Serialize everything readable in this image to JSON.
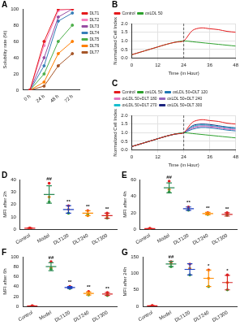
{
  "chart_data": [
    {
      "type": "line",
      "panel_label": "A",
      "y_label": "Solubility rate (%)",
      "categories": [
        "0 h",
        "24 h",
        "48 h",
        "72 h"
      ],
      "series": [
        {
          "name": "DLT1",
          "color": "#e41a1c",
          "values": [
            0,
            60,
            100,
            100
          ]
        },
        {
          "name": "DLT2",
          "color": "#f781bf",
          "values": [
            0,
            55,
            98,
            100
          ]
        },
        {
          "name": "DLT3",
          "color": "#984ea3",
          "values": [
            0,
            40,
            90,
            100
          ]
        },
        {
          "name": "DLT4",
          "color": "#377eb8",
          "values": [
            0,
            30,
            85,
            95
          ]
        },
        {
          "name": "DLT5",
          "color": "#4daf4a",
          "values": [
            0,
            20,
            60,
            80
          ]
        },
        {
          "name": "DLT6",
          "color": "#ff7f00",
          "values": [
            0,
            10,
            45,
            60
          ]
        },
        {
          "name": "DLT7",
          "color": "#a65628",
          "values": [
            0,
            5,
            30,
            45
          ]
        }
      ],
      "ylim": [
        0,
        100
      ],
      "yticks": [
        0,
        20,
        40,
        60,
        80,
        100
      ],
      "grid": false,
      "legend": "right"
    },
    {
      "type": "line",
      "panel_label": "B",
      "x_label": "Time (in Hour)",
      "y_label": "Normalized Cell Index",
      "x": [
        0,
        4,
        8,
        12,
        16,
        20,
        24,
        28,
        32,
        36,
        40,
        44,
        48
      ],
      "series": [
        {
          "name": "Control",
          "color": "#e41a1c",
          "values": [
            0.2,
            0.35,
            0.5,
            0.65,
            0.8,
            0.92,
            1.0,
            1.6,
            1.75,
            1.7,
            1.65,
            1.55,
            1.5
          ]
        },
        {
          "name": "oxLDL 50",
          "color": "#2ca02c",
          "values": [
            0.2,
            0.35,
            0.5,
            0.65,
            0.8,
            0.92,
            1.0,
            0.95,
            0.9,
            0.85,
            0.8,
            0.75,
            0.7
          ]
        }
      ],
      "xlim": [
        0,
        48
      ],
      "xticks": [
        0,
        12,
        24,
        36,
        48
      ],
      "ylim": [
        0,
        2
      ],
      "yticks": [
        {
          "value": 0,
          "label": "0.0"
        },
        {
          "value": 0.5,
          "label": "0.5"
        },
        {
          "value": 1,
          "label": "1.0"
        },
        {
          "value": 1.5,
          "label": "1.5"
        },
        {
          "value": 2,
          "label": "2.0"
        }
      ],
      "annotations": [
        {
          "x": 24,
          "line_style": "dashed"
        }
      ],
      "grid": true,
      "legend": "top"
    },
    {
      "type": "line",
      "panel_label": "C",
      "x_label": "Time (in Hour)",
      "y_label": "Normalized Cell Index",
      "x": [
        0,
        4,
        8,
        12,
        16,
        20,
        24,
        28,
        32,
        36,
        40,
        44,
        48
      ],
      "series": [
        {
          "name": "Control",
          "color": "#e41a1c",
          "values": [
            0.2,
            0.35,
            0.5,
            0.65,
            0.8,
            0.92,
            1.0,
            1.6,
            1.75,
            1.7,
            1.65,
            1.55,
            1.5
          ]
        },
        {
          "name": "oxLDL 50",
          "color": "#2ca02c",
          "values": [
            0.2,
            0.35,
            0.5,
            0.65,
            0.8,
            0.92,
            1.0,
            0.95,
            0.9,
            0.85,
            0.8,
            0.75,
            0.7
          ]
        },
        {
          "name": "oxLDL 50+DLT 120",
          "color": "#1f77b4",
          "values": [
            0.2,
            0.35,
            0.5,
            0.65,
            0.8,
            0.92,
            1.0,
            1.2,
            1.3,
            1.28,
            1.22,
            1.15,
            1.1
          ]
        },
        {
          "name": "oxLDL 50+DLT 180",
          "color": "#e377c2",
          "values": [
            0.2,
            0.35,
            0.5,
            0.65,
            0.8,
            0.92,
            1.0,
            1.25,
            1.35,
            1.33,
            1.28,
            1.2,
            1.15
          ]
        },
        {
          "name": "oxLDL 50+DLT 240",
          "color": "#9467bd",
          "values": [
            0.2,
            0.35,
            0.5,
            0.65,
            0.8,
            0.92,
            1.0,
            1.3,
            1.4,
            1.38,
            1.32,
            1.25,
            1.2
          ]
        },
        {
          "name": "oxLDL 50+DLT 270",
          "color": "#17becf",
          "values": [
            0.2,
            0.35,
            0.5,
            0.65,
            0.8,
            0.92,
            1.0,
            1.35,
            1.45,
            1.42,
            1.36,
            1.3,
            1.25
          ]
        },
        {
          "name": "oxLDL 50+DLT 300",
          "color": "#1a237e",
          "values": [
            0.2,
            0.35,
            0.5,
            0.65,
            0.8,
            0.92,
            1.0,
            1.4,
            1.5,
            1.47,
            1.4,
            1.33,
            1.28
          ]
        }
      ],
      "xlim": [
        0,
        48
      ],
      "xticks": [
        0,
        12,
        24,
        36,
        48
      ],
      "ylim": [
        0,
        2
      ],
      "yticks": [
        {
          "value": 0,
          "label": "0.0"
        },
        {
          "value": 0.5,
          "label": "0.5"
        },
        {
          "value": 1,
          "label": "1.0"
        },
        {
          "value": 1.5,
          "label": "1.5"
        },
        {
          "value": 2,
          "label": "2.0"
        }
      ],
      "annotations": [
        {
          "x": 24,
          "line_style": "dashed"
        }
      ],
      "grid": true,
      "legend": "top"
    },
    {
      "type": "dot",
      "panel_label": "D",
      "y_label": "MFI after 2h",
      "categories": [
        "Control",
        "Model",
        "DLT120",
        "DLT240",
        "DLT300"
      ],
      "series": [
        {
          "color": "#e41a1c",
          "values": [
            1.2,
            37,
            19,
            15,
            13
          ]
        },
        {
          "color": "#2ca02c",
          "values": [
            0.8,
            22,
            13,
            12,
            9
          ]
        },
        {
          "color": "#ff7f00",
          "values": [
            1,
            26,
            16,
            11,
            11
          ]
        }
      ],
      "mean": [
        1,
        28,
        16,
        13,
        11
      ],
      "sd": [
        0.3,
        7,
        3,
        2,
        2
      ],
      "colors": [
        "#e41a1c",
        "#2e8b57",
        "#1f3fbf",
        "#ff8c00",
        "#d62728"
      ],
      "annotations": [
        {
          "category": "Model",
          "text": "##"
        },
        {
          "category": "DLT120",
          "text": "**"
        },
        {
          "category": "DLT240",
          "text": "**"
        },
        {
          "category": "DLT300",
          "text": "**"
        }
      ],
      "ylim": [
        0,
        40
      ],
      "yticks": [
        0,
        10,
        20,
        30,
        40
      ],
      "grid": false
    },
    {
      "type": "dot",
      "panel_label": "E",
      "y_label": "MFI after 4h",
      "categories": [
        "Control",
        "Model",
        "DLT120",
        "DLT240",
        "DLT300"
      ],
      "series": [
        {
          "color": "#e41a1c",
          "values": [
            1.2,
            58,
            27,
            20,
            20
          ]
        },
        {
          "color": "#2ca02c",
          "values": [
            0.8,
            45,
            23,
            18,
            17
          ]
        },
        {
          "color": "#ff7f00",
          "values": [
            1,
            48,
            25,
            19,
            18
          ]
        }
      ],
      "mean": [
        1,
        50,
        25,
        19,
        18
      ],
      "sd": [
        0.3,
        6,
        2,
        1.5,
        2
      ],
      "colors": [
        "#e41a1c",
        "#2e8b57",
        "#1f3fbf",
        "#ff8c00",
        "#d62728"
      ],
      "annotations": [
        {
          "category": "Model",
          "text": "##"
        },
        {
          "category": "DLT120",
          "text": "**"
        },
        {
          "category": "DLT240",
          "text": "**"
        },
        {
          "category": "DLT300",
          "text": "**"
        }
      ],
      "ylim": [
        0,
        60
      ],
      "yticks": [
        0,
        20,
        40,
        60
      ],
      "grid": false
    },
    {
      "type": "dot",
      "panel_label": "F",
      "y_label": "MFI after 6h",
      "categories": [
        "Control",
        "Model",
        "DLT120",
        "DLT240",
        "DLT300"
      ],
      "series": [
        {
          "color": "#e41a1c",
          "values": [
            1.2,
            90,
            40,
            30,
            28
          ]
        },
        {
          "color": "#2ca02c",
          "values": [
            0.8,
            75,
            36,
            23,
            22
          ]
        },
        {
          "color": "#ff7f00",
          "values": [
            1,
            78,
            38,
            25,
            24
          ]
        }
      ],
      "mean": [
        1,
        80,
        38,
        26,
        25
      ],
      "sd": [
        0.3,
        8,
        2,
        3,
        3
      ],
      "colors": [
        "#e41a1c",
        "#2e8b57",
        "#1f3fbf",
        "#ff8c00",
        "#d62728"
      ],
      "annotations": [
        {
          "category": "Model",
          "text": "##"
        },
        {
          "category": "DLT120",
          "text": "**"
        },
        {
          "category": "DLT240",
          "text": "**"
        },
        {
          "category": "DLT300",
          "text": "**"
        }
      ],
      "ylim": [
        0,
        100
      ],
      "yticks": [
        0,
        20,
        40,
        60,
        80,
        100
      ],
      "grid": false
    },
    {
      "type": "dot",
      "panel_label": "G",
      "y_label": "MFI after 24h",
      "categories": [
        "Control",
        "Model",
        "DLT120",
        "DLT240",
        "DLT300"
      ],
      "series": [
        {
          "color": "#e41a1c",
          "values": [
            2.5,
            135,
            128,
            110,
            95
          ]
        },
        {
          "color": "#2ca02c",
          "values": [
            1.5,
            120,
            95,
            60,
            50
          ]
        },
        {
          "color": "#ff7f00",
          "values": [
            2,
            130,
            115,
            85,
            72
          ]
        }
      ],
      "mean": [
        2,
        128,
        112,
        85,
        72
      ],
      "sd": [
        0.5,
        8,
        17,
        25,
        22
      ],
      "colors": [
        "#e41a1c",
        "#2e8b57",
        "#1f3fbf",
        "#ff8c00",
        "#d62728"
      ],
      "annotations": [
        {
          "category": "Model",
          "text": "##"
        },
        {
          "category": "DLT240",
          "text": "*"
        },
        {
          "category": "DLT300",
          "text": "*"
        }
      ],
      "ylim": [
        0,
        150
      ],
      "yticks": [
        0,
        50,
        100,
        150
      ],
      "grid": false
    }
  ]
}
